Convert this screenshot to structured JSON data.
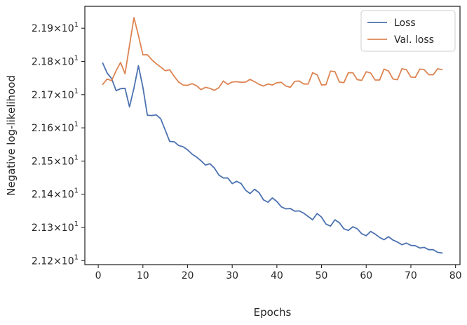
{
  "chart_data": {
    "type": "line",
    "xlabel": "Epochs",
    "ylabel": "Negative log-likelihood",
    "xlim": [
      -3,
      81
    ],
    "ylim": [
      21.188,
      21.966
    ],
    "xticks": [
      0,
      10,
      20,
      30,
      40,
      50,
      60,
      70,
      80
    ],
    "yticks": [
      {
        "value": 21.2,
        "mantissa": "2.12",
        "times": "×",
        "base": "10",
        "exponent": "1"
      },
      {
        "value": 21.3,
        "mantissa": "2.13",
        "times": "×",
        "base": "10",
        "exponent": "1"
      },
      {
        "value": 21.4,
        "mantissa": "2.14",
        "times": "×",
        "base": "10",
        "exponent": "1"
      },
      {
        "value": 21.5,
        "mantissa": "2.15",
        "times": "×",
        "base": "10",
        "exponent": "1"
      },
      {
        "value": 21.6,
        "mantissa": "2.16",
        "times": "×",
        "base": "10",
        "exponent": "1"
      },
      {
        "value": 21.7,
        "mantissa": "2.17",
        "times": "×",
        "base": "10",
        "exponent": "1"
      },
      {
        "value": 21.8,
        "mantissa": "2.18",
        "times": "×",
        "base": "10",
        "exponent": "1"
      },
      {
        "value": 21.9,
        "mantissa": "2.19",
        "times": "×",
        "base": "10",
        "exponent": "1"
      }
    ],
    "legend_position": "top-right",
    "grid": false,
    "series": [
      {
        "name": "Loss",
        "color": "#4c72b0",
        "x": [
          1,
          2,
          3,
          4,
          5,
          6,
          7,
          8,
          9,
          10,
          11,
          12,
          13,
          14,
          15,
          16,
          17,
          18,
          19,
          20,
          21,
          22,
          23,
          24,
          25,
          26,
          27,
          28,
          29,
          30,
          31,
          32,
          33,
          34,
          35,
          36,
          37,
          38,
          39,
          40,
          41,
          42,
          43,
          44,
          45,
          46,
          47,
          48,
          49,
          50,
          51,
          52,
          53,
          54,
          55,
          56,
          57,
          58,
          59,
          60,
          61,
          62,
          63,
          64,
          65,
          66,
          67,
          68,
          69,
          70,
          71,
          72,
          73,
          74,
          75,
          76,
          77
        ],
        "y": [
          21.795,
          21.765,
          21.748,
          21.712,
          21.718,
          21.719,
          21.663,
          21.72,
          21.787,
          21.722,
          21.638,
          21.637,
          21.639,
          21.627,
          21.593,
          21.559,
          21.558,
          21.547,
          21.543,
          21.534,
          21.521,
          21.512,
          21.501,
          21.488,
          21.492,
          21.479,
          21.458,
          21.449,
          21.449,
          21.432,
          21.439,
          21.432,
          21.412,
          21.402,
          21.415,
          21.405,
          21.383,
          21.376,
          21.389,
          21.378,
          21.362,
          21.356,
          21.357,
          21.349,
          21.35,
          21.343,
          21.333,
          21.323,
          21.342,
          21.331,
          21.31,
          21.304,
          21.323,
          21.314,
          21.296,
          21.291,
          21.302,
          21.296,
          21.281,
          21.275,
          21.288,
          21.28,
          21.27,
          21.263,
          21.272,
          21.262,
          21.256,
          21.248,
          21.253,
          21.246,
          21.245,
          21.238,
          21.24,
          21.233,
          21.233,
          21.225,
          21.223
        ]
      },
      {
        "name": "Val. loss",
        "color": "#dd8452",
        "x": [
          1,
          2,
          3,
          4,
          5,
          6,
          7,
          8,
          9,
          10,
          11,
          12,
          13,
          14,
          15,
          16,
          17,
          18,
          19,
          20,
          21,
          22,
          23,
          24,
          25,
          26,
          27,
          28,
          29,
          30,
          31,
          32,
          33,
          34,
          35,
          36,
          37,
          38,
          39,
          40,
          41,
          42,
          43,
          44,
          45,
          46,
          47,
          48,
          49,
          50,
          51,
          52,
          53,
          54,
          55,
          56,
          57,
          58,
          59,
          60,
          61,
          62,
          63,
          64,
          65,
          66,
          67,
          68,
          69,
          70,
          71,
          72,
          73,
          74,
          75,
          76,
          77
        ],
        "y": [
          21.731,
          21.747,
          21.742,
          21.772,
          21.797,
          21.763,
          21.848,
          21.932,
          21.878,
          21.82,
          21.82,
          21.805,
          21.793,
          21.783,
          21.772,
          21.775,
          21.755,
          21.738,
          21.729,
          21.728,
          21.733,
          21.727,
          21.715,
          21.722,
          21.719,
          21.713,
          21.721,
          21.741,
          21.731,
          21.738,
          21.739,
          21.737,
          21.738,
          21.746,
          21.739,
          21.731,
          21.726,
          21.732,
          21.729,
          21.736,
          21.737,
          21.726,
          21.722,
          21.74,
          21.741,
          21.732,
          21.732,
          21.766,
          21.76,
          21.729,
          21.73,
          21.771,
          21.769,
          21.738,
          21.736,
          21.766,
          21.766,
          21.745,
          21.743,
          21.769,
          21.765,
          21.744,
          21.744,
          21.777,
          21.771,
          21.747,
          21.745,
          21.778,
          21.775,
          21.753,
          21.752,
          21.777,
          21.775,
          21.76,
          21.76,
          21.778,
          21.775
        ]
      }
    ]
  }
}
